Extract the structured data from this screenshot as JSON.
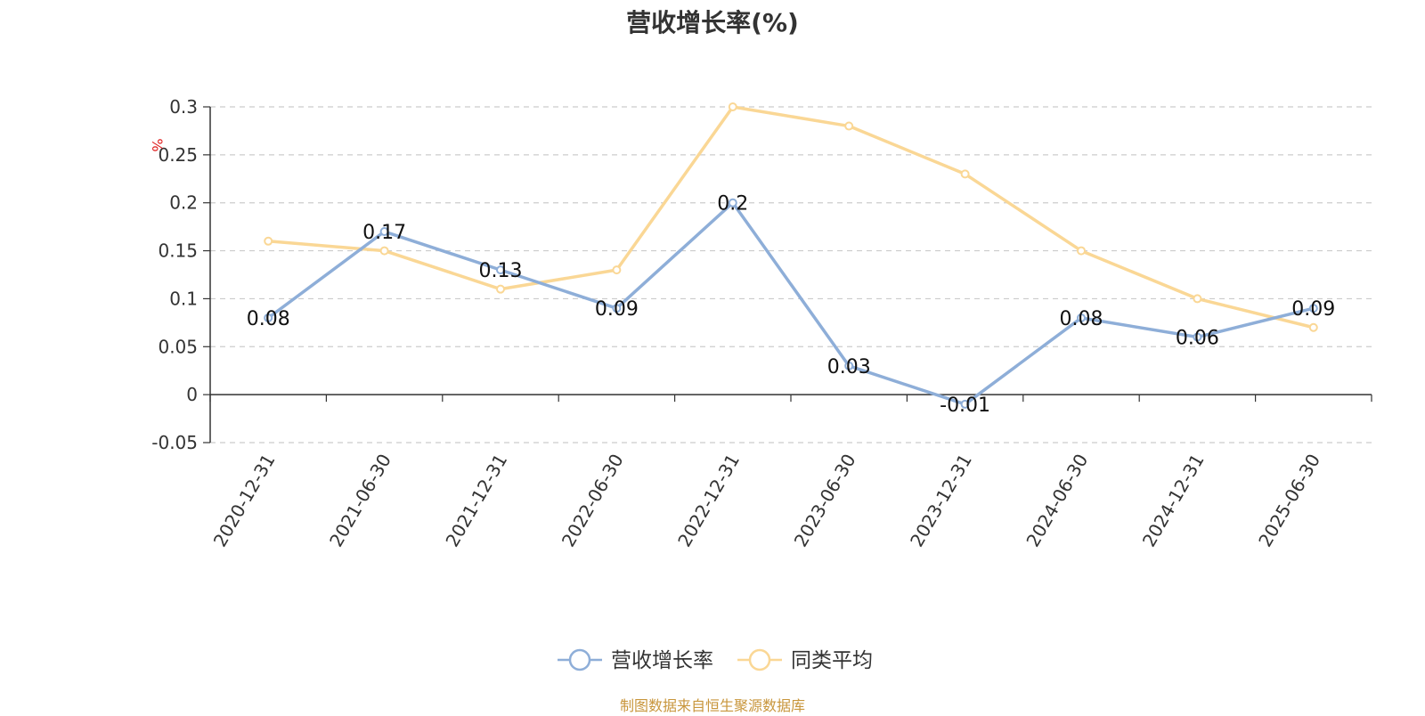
{
  "chart_data": {
    "type": "line",
    "title": "营收增长率(%)",
    "ylabel": "%",
    "categories": [
      "2020-12-31",
      "2021-06-30",
      "2021-12-31",
      "2022-06-30",
      "2022-12-31",
      "2023-06-30",
      "2023-12-31",
      "2024-06-30",
      "2024-12-31",
      "2025-06-30"
    ],
    "series": [
      {
        "name": "营收增长率",
        "color": "#8eaed8",
        "values": [
          0.08,
          0.17,
          0.13,
          0.09,
          0.2,
          0.03,
          -0.01,
          0.08,
          0.06,
          0.09
        ],
        "data_labels": [
          "0.08",
          "0.17",
          "0.13",
          "0.09",
          "0.2",
          "0.03",
          "-0.01",
          "0.08",
          "0.06",
          "0.09"
        ]
      },
      {
        "name": "同类平均",
        "color": "#fad795",
        "values": [
          0.16,
          0.15,
          0.11,
          0.13,
          0.3,
          0.28,
          0.23,
          0.15,
          0.1,
          0.07
        ]
      }
    ],
    "ylim": [
      -0.05,
      0.3
    ],
    "yticks": [
      0.3,
      0.25,
      0.2,
      0.15,
      0.1,
      0.05,
      0,
      -0.05
    ],
    "ytick_labels": [
      "0.3",
      "0.25",
      "0.2",
      "0.15",
      "0.1",
      "0.05",
      "0",
      "-0.05"
    ],
    "grid": true,
    "legend_position": "bottom-center"
  },
  "source": "制图数据来自恒生聚源数据库"
}
